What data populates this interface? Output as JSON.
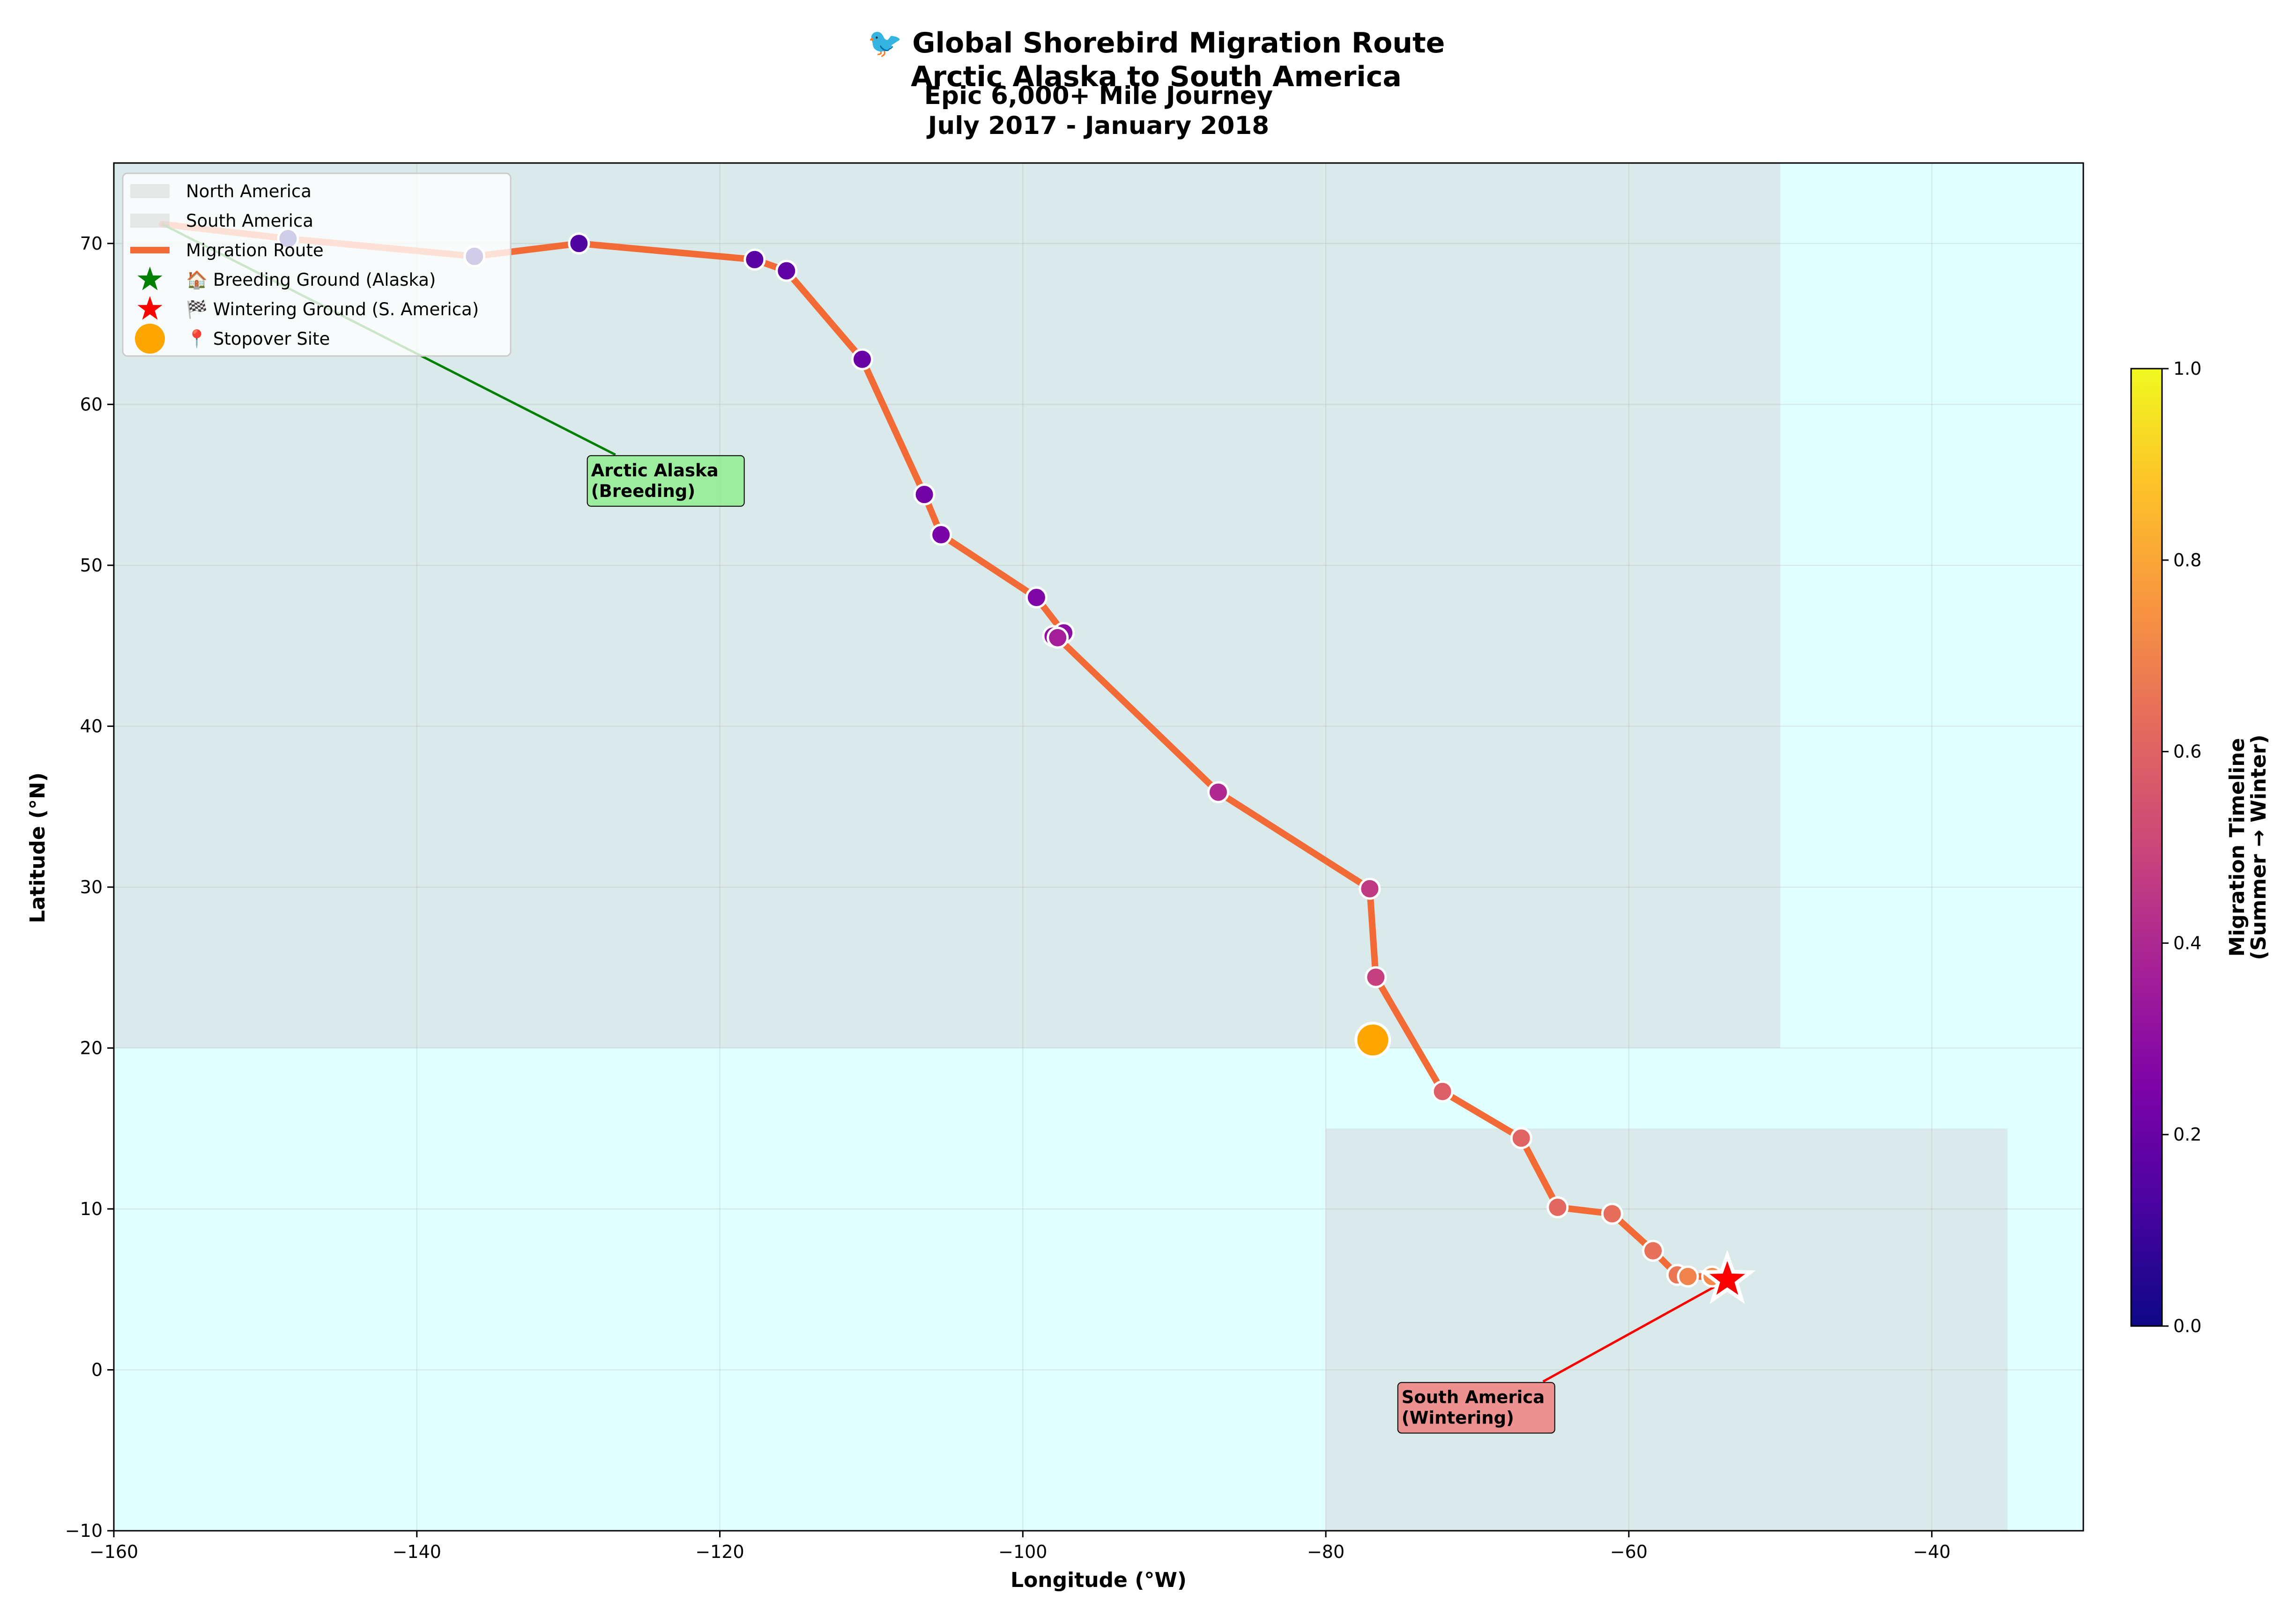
{
  "chart_data": {
    "type": "scatter",
    "title": "🐦 Global Shorebird Migration Route\nArctic Alaska to South America",
    "subtitle": "Epic 6,000+ Mile Journey\nJuly 2017 - January 2018",
    "xlabel": "Longitude (°W)",
    "ylabel": "Latitude (°N)",
    "xlim": [
      -160,
      -30
    ],
    "ylim": [
      -10,
      75
    ],
    "xticks": [
      -160,
      -140,
      -120,
      -100,
      -80,
      -60,
      -40
    ],
    "yticks": [
      -10,
      0,
      10,
      20,
      30,
      40,
      50,
      60,
      70
    ],
    "xtick_labels": [
      "−160",
      "−140",
      "−120",
      "−100",
      "−80",
      "−60",
      "−40"
    ],
    "ytick_labels": [
      "−10",
      "0",
      "10",
      "20",
      "30",
      "40",
      "50",
      "60",
      "70"
    ],
    "grid": true,
    "background_color": "#e0ffff",
    "regions": [
      {
        "name": "North America",
        "x_range": [
          -160,
          -50
        ],
        "y_range": [
          20,
          75
        ],
        "color": "#d3d3d3"
      },
      {
        "name": "South America",
        "x_range": [
          -80,
          -35
        ],
        "y_range": [
          -10,
          15
        ],
        "color": "#d3d3d3"
      }
    ],
    "route": {
      "name": "Migration Route",
      "color": "#f26a35",
      "points": [
        {
          "lon": -156.8,
          "lat": 71.2,
          "t": 0.0
        },
        {
          "lon": -148.5,
          "lat": 70.3,
          "t": 0.01
        },
        {
          "lon": -136.2,
          "lat": 69.2,
          "t": 0.03
        },
        {
          "lon": -129.3,
          "lat": 70.0,
          "t": 0.14
        },
        {
          "lon": -117.7,
          "lat": 69.0,
          "t": 0.16
        },
        {
          "lon": -115.6,
          "lat": 68.3,
          "t": 0.18
        },
        {
          "lon": -110.6,
          "lat": 62.8,
          "t": 0.2
        },
        {
          "lon": -106.5,
          "lat": 54.4,
          "t": 0.22
        },
        {
          "lon": -105.4,
          "lat": 51.9,
          "t": 0.24
        },
        {
          "lon": -99.1,
          "lat": 48.0,
          "t": 0.26
        },
        {
          "lon": -97.3,
          "lat": 45.8,
          "t": 0.29
        },
        {
          "lon": -98.0,
          "lat": 45.6,
          "t": 0.31
        },
        {
          "lon": -97.7,
          "lat": 45.5,
          "t": 0.36
        },
        {
          "lon": -87.1,
          "lat": 35.9,
          "t": 0.4
        },
        {
          "lon": -77.1,
          "lat": 29.9,
          "t": 0.46
        },
        {
          "lon": -76.7,
          "lat": 24.4,
          "t": 0.48
        },
        {
          "lon": -72.3,
          "lat": 17.3,
          "t": 0.58
        },
        {
          "lon": -67.1,
          "lat": 14.4,
          "t": 0.6
        },
        {
          "lon": -64.7,
          "lat": 10.1,
          "t": 0.61
        },
        {
          "lon": -61.1,
          "lat": 9.7,
          "t": 0.63
        },
        {
          "lon": -58.4,
          "lat": 7.4,
          "t": 0.64
        },
        {
          "lon": -56.8,
          "lat": 5.9,
          "t": 0.66
        },
        {
          "lon": -56.1,
          "lat": 5.8,
          "t": 0.7
        },
        {
          "lon": -54.5,
          "lat": 5.8,
          "t": 0.72
        },
        {
          "lon": -53.5,
          "lat": 5.6,
          "t": 0.73
        }
      ]
    },
    "stopover": {
      "name": "Stopover Site",
      "lon": -76.9,
      "lat": 20.5,
      "color": "#ffa500"
    },
    "breeding_ground": {
      "name": "Breeding Ground (Alaska)",
      "lon": -156.8,
      "lat": 71.2,
      "color": "#008000"
    },
    "wintering_ground": {
      "name": "Wintering Ground (S. America)",
      "lon": -53.5,
      "lat": 5.6,
      "color": "#ff0000"
    },
    "annotations": [
      {
        "text": "Arctic Alaska\n(Breeding)",
        "lon": -128.5,
        "lat": 55.3,
        "target_lon": -156.8,
        "target_lat": 71.2,
        "box_color": "#90ee90",
        "arrow_color": "#008000"
      },
      {
        "text": "South America\n(Wintering)",
        "lon": -75.0,
        "lat": -2.3,
        "target_lon": -53.5,
        "target_lat": 5.6,
        "box_color": "#f08080",
        "arrow_color": "#ff0000"
      }
    ],
    "legend": {
      "placement": "top-left",
      "entries": [
        {
          "label": "North America",
          "kind": "patch",
          "color": "#d3d3d3"
        },
        {
          "label": "South America",
          "kind": "patch",
          "color": "#d3d3d3"
        },
        {
          "label": "Migration Route",
          "kind": "line",
          "color": "#f26a35"
        },
        {
          "label": "🏠 Breeding Ground (Alaska)",
          "kind": "star",
          "color": "#008000"
        },
        {
          "label": "🏁 Wintering Ground (S. America)",
          "kind": "star",
          "color": "#ff0000"
        },
        {
          "label": "📍 Stopover Site",
          "kind": "circle",
          "color": "#ffa500"
        }
      ]
    },
    "colorbar": {
      "label": "Migration Timeline\n(Summer → Winter)",
      "colormap": "plasma",
      "range": [
        0,
        1
      ],
      "ticks": [
        0.0,
        0.2,
        0.4,
        0.6,
        0.8,
        1.0
      ],
      "tick_labels": [
        "0.0",
        "0.2",
        "0.4",
        "0.6",
        "0.8",
        "1.0"
      ]
    }
  }
}
